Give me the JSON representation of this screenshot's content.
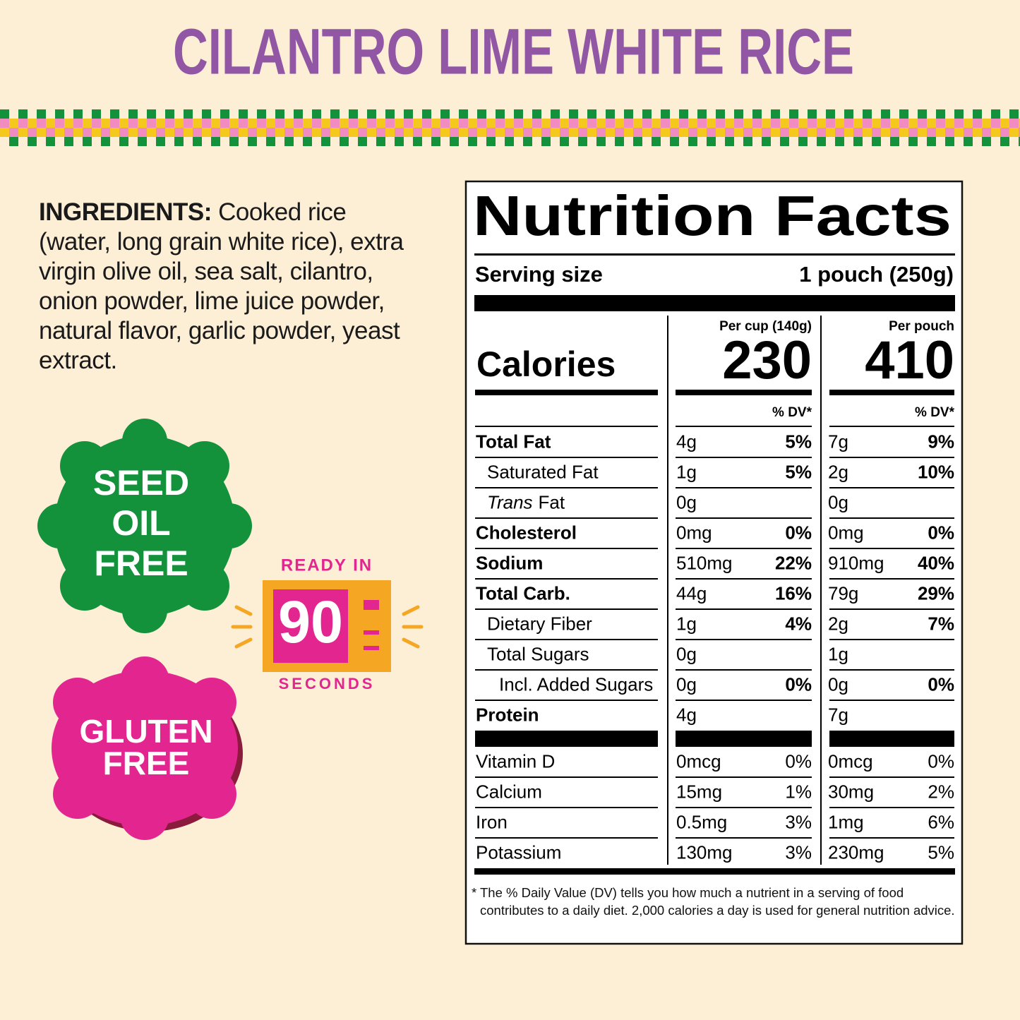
{
  "title": "CILANTRO LIME WHITE RICE",
  "ingredients": {
    "label": "INGREDIENTS:",
    "text": "Cooked rice (water, long grain white rice), extra virgin olive oil, sea salt, cilantro, onion powder, lime juice powder, natural flavor, garlic powder, yeast extract."
  },
  "badges": {
    "seed_oil_free": [
      "SEED",
      "OIL",
      "FREE"
    ],
    "ready": {
      "top": "READY IN",
      "number": "90",
      "bottom": "SECONDS"
    },
    "gluten_free": [
      "GLUTEN",
      "FREE"
    ]
  },
  "nutrition": {
    "title": "Nutrition Facts",
    "serving_label": "Serving size",
    "serving_value": "1 pouch (250g)",
    "columns": [
      "Per cup (140g)",
      "Per pouch"
    ],
    "calories_label": "Calories",
    "calories": [
      230,
      410
    ],
    "dv_header": "% DV*",
    "rows": [
      {
        "name": "Total Fat",
        "style": "bold",
        "cup": "4g",
        "cup_dv": "5%",
        "pouch": "7g",
        "pouch_dv": "9%"
      },
      {
        "name": "Saturated Fat",
        "style": "indent",
        "cup": "1g",
        "cup_dv": "5%",
        "pouch": "2g",
        "pouch_dv": "10%"
      },
      {
        "name_italic": "Trans",
        "name": "Fat",
        "style": "indent",
        "cup": "0g",
        "pouch": "0g"
      },
      {
        "name": "Cholesterol",
        "style": "bold",
        "cup": "0mg",
        "cup_dv": "0%",
        "pouch": "0mg",
        "pouch_dv": "0%"
      },
      {
        "name": "Sodium",
        "style": "bold",
        "cup": "510mg",
        "cup_dv": "22%",
        "pouch": "910mg",
        "pouch_dv": "40%"
      },
      {
        "name": "Total Carb.",
        "style": "bold",
        "cup": "44g",
        "cup_dv": "16%",
        "pouch": "79g",
        "pouch_dv": "29%"
      },
      {
        "name": "Dietary Fiber",
        "style": "indent",
        "cup": "1g",
        "cup_dv": "4%",
        "pouch": "2g",
        "pouch_dv": "7%"
      },
      {
        "name": "Total Sugars",
        "style": "indent",
        "cup": "0g",
        "pouch": "1g"
      },
      {
        "name": "Incl. Added Sugars",
        "style": "indent2",
        "cup": "0g",
        "cup_dv": "0%",
        "pouch": "0g",
        "pouch_dv": "0%"
      },
      {
        "name": "Protein",
        "style": "bold",
        "cup": "4g",
        "pouch": "7g"
      }
    ],
    "vitamins": [
      {
        "name": "Vitamin D",
        "cup": "0mcg",
        "cup_dv": "0%",
        "pouch": "0mcg",
        "pouch_dv": "0%"
      },
      {
        "name": "Calcium",
        "cup": "15mg",
        "cup_dv": "1%",
        "pouch": "30mg",
        "pouch_dv": "2%"
      },
      {
        "name": "Iron",
        "cup": "0.5mg",
        "cup_dv": "3%",
        "pouch": "1mg",
        "pouch_dv": "6%"
      },
      {
        "name": "Potassium",
        "cup": "130mg",
        "cup_dv": "3%",
        "pouch": "230mg",
        "pouch_dv": "5%"
      }
    ],
    "footnote_mark": "*",
    "footnote": "The % Daily Value (DV) tells you how much a nutrient in a serving of food contributes to a daily diet. 2,000 calories a day is used for general nutrition advice."
  }
}
